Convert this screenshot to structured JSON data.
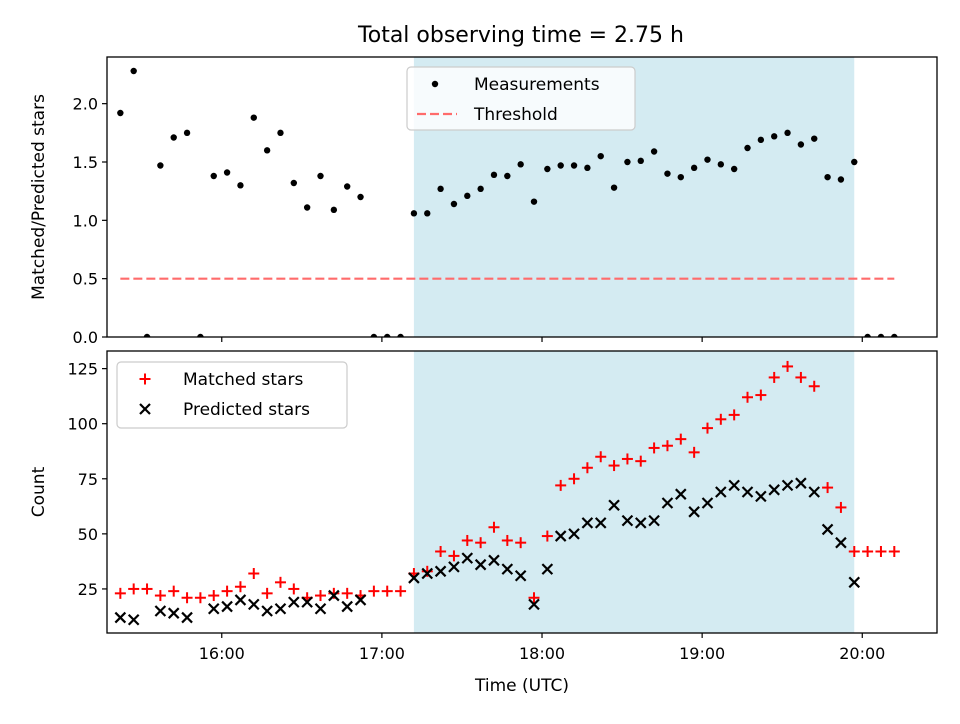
{
  "figure_title": "Total observing time = 2.75 h",
  "colors": {
    "shade": "#add8e6",
    "measurement": "#000000",
    "threshold": "#ff6b6b",
    "matched": "#ff0000",
    "predicted": "#000000"
  },
  "chart_data": [
    {
      "type": "scatter",
      "title": "Total observing time = 2.75 h",
      "xlabel": "",
      "ylabel": "Matched/Predicted stars",
      "xlim": [
        "15:17",
        "20:28"
      ],
      "ylim": [
        0,
        2.4
      ],
      "yticks": [
        "0.0",
        "0.5",
        "1.0",
        "1.5",
        "2.0"
      ],
      "shaded_region": [
        "17:12",
        "19:57"
      ],
      "legend_position": "top-center",
      "series": [
        {
          "name": "Measurements",
          "marker": "dot",
          "x": [
            "15:22",
            "15:27",
            "15:32",
            "15:37",
            "15:42",
            "15:47",
            "15:52",
            "15:57",
            "16:02",
            "16:07",
            "16:12",
            "16:17",
            "16:22",
            "16:27",
            "16:32",
            "16:37",
            "16:42",
            "16:47",
            "16:52",
            "16:57",
            "17:02",
            "17:07",
            "17:12",
            "17:17",
            "17:22",
            "17:27",
            "17:32",
            "17:37",
            "17:42",
            "17:47",
            "17:52",
            "17:57",
            "18:02",
            "18:07",
            "18:12",
            "18:17",
            "18:22",
            "18:27",
            "18:32",
            "18:37",
            "18:42",
            "18:47",
            "18:52",
            "18:57",
            "19:02",
            "19:07",
            "19:12",
            "19:17",
            "19:22",
            "19:27",
            "19:32",
            "19:37",
            "19:42",
            "19:47",
            "19:52",
            "19:57",
            "20:02",
            "20:07",
            "20:12"
          ],
          "values": [
            1.92,
            2.28,
            0,
            1.47,
            1.71,
            1.75,
            0,
            1.38,
            1.41,
            1.3,
            1.88,
            1.6,
            1.75,
            1.32,
            1.11,
            1.38,
            1.09,
            1.29,
            1.2,
            0,
            0,
            0,
            1.06,
            1.06,
            1.27,
            1.14,
            1.21,
            1.27,
            1.39,
            1.38,
            1.48,
            1.16,
            1.44,
            1.47,
            1.47,
            1.45,
            1.55,
            1.28,
            1.5,
            1.51,
            1.59,
            1.4,
            1.37,
            1.45,
            1.52,
            1.48,
            1.44,
            1.62,
            1.69,
            1.72,
            1.75,
            1.65,
            1.7,
            1.37,
            1.35,
            1.5,
            0,
            0,
            0
          ]
        },
        {
          "name": "Threshold",
          "style": "dashed",
          "x": [
            "15:22",
            "20:12"
          ],
          "values": [
            0.5,
            0.5
          ]
        }
      ]
    },
    {
      "type": "scatter",
      "xlabel": "Time (UTC)",
      "ylabel": "Count",
      "xlim": [
        "15:17",
        "20:28"
      ],
      "ylim": [
        5,
        133
      ],
      "yticks": [
        "25",
        "50",
        "75",
        "100",
        "125"
      ],
      "xticks": [
        "16:00",
        "17:00",
        "18:00",
        "19:00",
        "20:00"
      ],
      "shaded_region": [
        "17:12",
        "19:57"
      ],
      "legend_position": "top-left",
      "series": [
        {
          "name": "Matched stars",
          "marker": "plus",
          "x": [
            "15:22",
            "15:27",
            "15:32",
            "15:37",
            "15:42",
            "15:47",
            "15:52",
            "15:57",
            "16:02",
            "16:07",
            "16:12",
            "16:17",
            "16:22",
            "16:27",
            "16:32",
            "16:37",
            "16:42",
            "16:47",
            "16:52",
            "16:57",
            "17:02",
            "17:07",
            "17:12",
            "17:17",
            "17:22",
            "17:27",
            "17:32",
            "17:37",
            "17:42",
            "17:47",
            "17:52",
            "17:57",
            "18:02",
            "18:07",
            "18:12",
            "18:17",
            "18:22",
            "18:27",
            "18:32",
            "18:37",
            "18:42",
            "18:47",
            "18:52",
            "18:57",
            "19:02",
            "19:07",
            "19:12",
            "19:17",
            "19:22",
            "19:27",
            "19:32",
            "19:37",
            "19:42",
            "19:47",
            "19:52",
            "19:57",
            "20:02",
            "20:07",
            "20:12"
          ],
          "values": [
            23,
            25,
            25,
            22,
            24,
            21,
            21,
            22,
            24,
            26,
            32,
            23,
            28,
            25,
            21,
            22,
            23,
            23,
            22,
            24,
            24,
            24,
            32,
            33,
            42,
            40,
            47,
            46,
            53,
            47,
            46,
            21,
            49,
            72,
            75,
            80,
            85,
            81,
            84,
            83,
            89,
            90,
            93,
            87,
            98,
            102,
            104,
            112,
            113,
            121,
            126,
            121,
            117,
            71,
            62,
            42,
            42,
            42,
            42
          ]
        },
        {
          "name": "Predicted stars",
          "marker": "x",
          "x": [
            "15:22",
            "15:27",
            "15:37",
            "15:42",
            "15:47",
            "15:57",
            "16:02",
            "16:07",
            "16:12",
            "16:17",
            "16:22",
            "16:27",
            "16:32",
            "16:37",
            "16:42",
            "16:47",
            "16:52",
            "17:12",
            "17:17",
            "17:22",
            "17:27",
            "17:32",
            "17:37",
            "17:42",
            "17:47",
            "17:52",
            "17:57",
            "18:02",
            "18:07",
            "18:12",
            "18:17",
            "18:22",
            "18:27",
            "18:32",
            "18:37",
            "18:42",
            "18:47",
            "18:52",
            "18:57",
            "19:02",
            "19:07",
            "19:12",
            "19:17",
            "19:22",
            "19:27",
            "19:32",
            "19:37",
            "19:42",
            "19:47",
            "19:52",
            "19:57"
          ],
          "values": [
            12,
            11,
            15,
            14,
            12,
            16,
            17,
            20,
            18,
            15,
            16,
            19,
            19,
            16,
            22,
            17,
            20,
            30,
            32,
            33,
            35,
            39,
            36,
            38,
            34,
            31,
            18,
            34,
            49,
            50,
            55,
            55,
            63,
            56,
            55,
            56,
            64,
            68,
            60,
            64,
            69,
            72,
            69,
            67,
            70,
            72,
            73,
            69,
            52,
            46,
            28
          ]
        }
      ]
    }
  ]
}
